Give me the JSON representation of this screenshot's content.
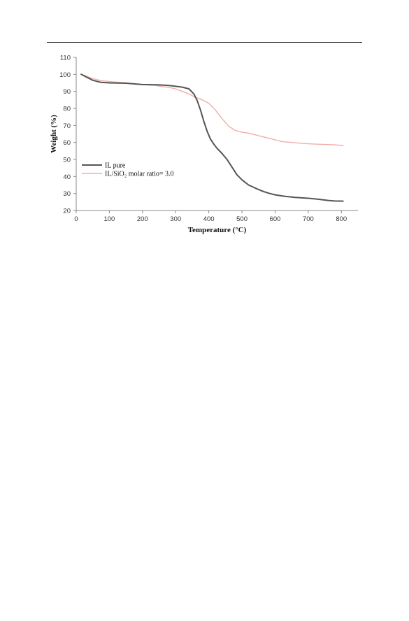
{
  "page": {
    "background": "#ffffff"
  },
  "chart_data": {
    "type": "line",
    "title": "",
    "xlabel": "Temperature (°C)",
    "ylabel": "Weight (%)",
    "xlim": [
      0,
      850
    ],
    "ylim": [
      20,
      110
    ],
    "xticks": [
      "0",
      "100",
      "200",
      "300",
      "400",
      "500",
      "600",
      "700",
      "800"
    ],
    "yticks": [
      "20",
      "30",
      "40",
      "50",
      "60",
      "70",
      "80",
      "90",
      "100",
      "110"
    ],
    "grid": false,
    "legend_position": "lower-left",
    "series": [
      {
        "name": "IL pure",
        "color": "#555555",
        "x": [
          15,
          30,
          50,
          75,
          100,
          150,
          200,
          250,
          280,
          300,
          320,
          340,
          355,
          365,
          375,
          385,
          395,
          405,
          415,
          425,
          440,
          455,
          470,
          485,
          500,
          520,
          540,
          560,
          580,
          600,
          630,
          660,
          700,
          730,
          760,
          780,
          805
        ],
        "y": [
          100,
          98.5,
          96.5,
          95.3,
          95.0,
          94.8,
          94.0,
          93.8,
          93.5,
          93.0,
          92.5,
          91.5,
          88.5,
          84.5,
          79,
          72.5,
          66.5,
          62,
          59,
          56.5,
          53.5,
          50,
          45.5,
          41,
          38,
          35,
          33.2,
          31.5,
          30.2,
          29.2,
          28.3,
          27.7,
          27.2,
          26.6,
          25.9,
          25.6,
          25.5
        ]
      },
      {
        "name": "IL/SiO₂ molar ratio= 3.0",
        "color": "#f0aeaa",
        "x": [
          15,
          30,
          50,
          75,
          100,
          150,
          200,
          240,
          260,
          280,
          300,
          320,
          340,
          360,
          380,
          400,
          420,
          440,
          460,
          480,
          500,
          520,
          540,
          560,
          580,
          600,
          620,
          650,
          680,
          700,
          720,
          750,
          780,
          805
        ],
        "y": [
          100,
          99.0,
          97.5,
          96.3,
          95.8,
          95.0,
          94.0,
          93.5,
          92.8,
          92.3,
          91.5,
          90.0,
          88.5,
          86.5,
          85.0,
          83.0,
          79,
          74,
          69.5,
          67,
          66,
          65.5,
          64.5,
          63.5,
          62.5,
          61.5,
          60.5,
          60.0,
          59.5,
          59.2,
          59.0,
          58.8,
          58.6,
          58.2
        ]
      }
    ]
  }
}
